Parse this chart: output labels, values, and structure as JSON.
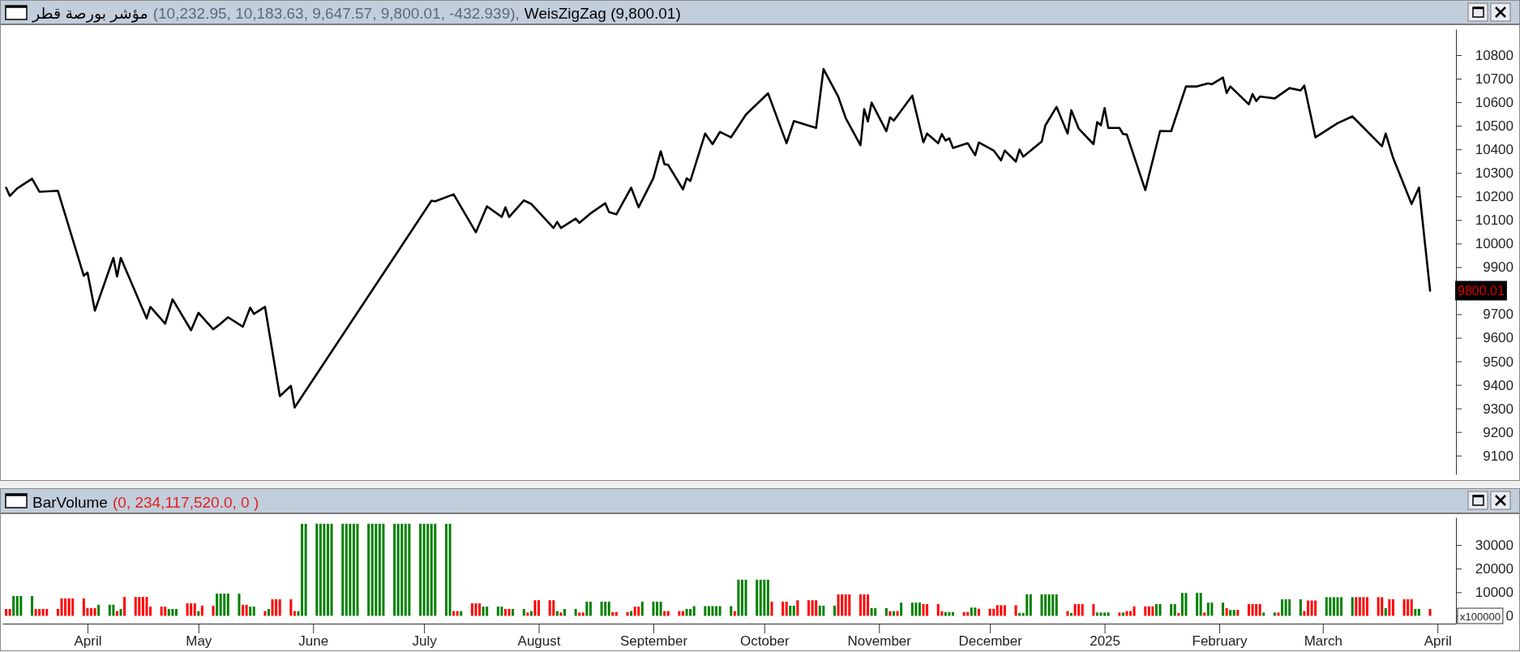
{
  "chart_data": [
    {
      "type": "line",
      "title": "مؤشر بورصة قطر",
      "annotations": [
        "(10,232.95, 10,183.63, 9,647.57, 9,800.01, -432.939),",
        {
          "text": "9800.01",
          "x": "2025-03-30",
          "y": 9800.01
        }
      ],
      "xlim": [
        "2024-03-09",
        "2025-04-06"
      ],
      "ylim": [
        9020,
        10910
      ],
      "yticks": [
        9100,
        9200,
        9300,
        9400,
        9500,
        9600,
        9700,
        9900,
        10000,
        10100,
        10200,
        10300,
        10400,
        10500,
        10600,
        10700,
        10800
      ],
      "tick_labels": "y",
      "legend": "top left",
      "x": [
        "2024-03-10",
        "2024-03-11",
        "2024-03-13",
        "2024-03-17",
        "2024-03-19",
        "2024-03-24",
        "2024-03-31",
        "2024-04-01",
        "2024-04-03",
        "2024-04-08",
        "2024-04-09",
        "2024-04-10",
        "2024-04-17",
        "2024-04-18",
        "2024-04-22",
        "2024-04-24",
        "2024-04-29",
        "2024-05-01",
        "2024-05-05",
        "2024-05-07",
        "2024-05-09",
        "2024-05-13",
        "2024-05-15",
        "2024-05-16",
        "2024-05-19",
        "2024-05-23",
        "2024-05-26",
        "2024-05-27",
        "2024-07-03",
        "2024-07-04",
        "2024-07-09",
        "2024-07-15",
        "2024-07-18",
        "2024-07-22",
        "2024-07-23",
        "2024-07-24",
        "2024-07-28",
        "2024-07-30",
        "2024-08-05",
        "2024-08-06",
        "2024-08-07",
        "2024-08-11",
        "2024-08-12",
        "2024-08-15",
        "2024-08-19",
        "2024-08-20",
        "2024-08-22",
        "2024-08-26",
        "2024-08-28",
        "2024-09-01",
        "2024-09-03",
        "2024-09-04",
        "2024-09-05",
        "2024-09-09",
        "2024-09-10",
        "2024-09-11",
        "2024-09-15",
        "2024-09-17",
        "2024-09-19",
        "2024-09-22",
        "2024-09-26",
        "2024-10-02",
        "2024-10-07",
        "2024-10-09",
        "2024-10-15",
        "2024-10-17",
        "2024-10-21",
        "2024-10-23",
        "2024-10-27",
        "2024-10-28",
        "2024-10-29",
        "2024-10-30",
        "2024-11-03",
        "2024-11-04",
        "2024-11-05",
        "2024-11-10",
        "2024-11-13",
        "2024-11-14",
        "2024-11-17",
        "2024-11-18",
        "2024-11-19",
        "2024-11-20",
        "2024-11-21",
        "2024-11-25",
        "2024-11-27",
        "2024-11-28",
        "2024-12-02",
        "2024-12-04",
        "2024-12-05",
        "2024-12-08",
        "2024-12-09",
        "2024-12-10",
        "2024-12-15",
        "2024-12-16",
        "2024-12-19",
        "2024-12-22",
        "2024-12-23",
        "2024-12-25",
        "2024-12-29",
        "2024-12-30",
        "2024-12-31",
        "2025-01-01",
        "2025-01-02",
        "2025-01-05",
        "2025-01-06",
        "2025-01-07",
        "2025-01-12",
        "2025-01-16",
        "2025-01-19",
        "2025-01-23",
        "2025-01-26",
        "2025-01-29",
        "2025-01-30",
        "2025-02-02",
        "2025-02-03",
        "2025-02-04",
        "2025-02-09",
        "2025-02-10",
        "2025-02-11",
        "2025-02-12",
        "2025-02-16",
        "2025-02-20",
        "2025-02-23",
        "2025-02-24",
        "2025-02-27",
        "2025-03-05",
        "2025-03-09",
        "2025-03-17",
        "2025-03-18",
        "2025-03-20",
        "2025-03-25",
        "2025-03-27",
        "2025-03-30"
      ],
      "series": [
        {
          "name": "WeisZigZag (9,800.01)",
          "color": "#000000",
          "values": [
            10237,
            10202,
            10234,
            10275,
            10220,
            10224,
            9863,
            9877,
            9715,
            9939,
            9860,
            9939,
            9682,
            9731,
            9660,
            9763,
            9632,
            9706,
            9636,
            9660,
            9687,
            9647,
            9728,
            9701,
            9731,
            9352,
            9396,
            9304,
            10182,
            10179,
            10209,
            10048,
            10158,
            10113,
            10154,
            10113,
            10183,
            10168,
            10066,
            10092,
            10066,
            10106,
            10088,
            10128,
            10171,
            10134,
            10124,
            10237,
            10154,
            10278,
            10392,
            10337,
            10334,
            10230,
            10277,
            10266,
            10467,
            10422,
            10474,
            10451,
            10547,
            10638,
            10426,
            10520,
            10491,
            10741,
            10623,
            10533,
            10417,
            10571,
            10518,
            10598,
            10477,
            10536,
            10522,
            10628,
            10430,
            10467,
            10426,
            10465,
            10437,
            10447,
            10406,
            10426,
            10375,
            10429,
            10395,
            10353,
            10395,
            10348,
            10399,
            10369,
            10433,
            10502,
            10580,
            10467,
            10566,
            10488,
            10422,
            10516,
            10502,
            10575,
            10491,
            10491,
            10465,
            10463,
            10227,
            10478,
            10477,
            10667,
            10667,
            10680,
            10676,
            10705,
            10639,
            10667,
            10591,
            10635,
            10605,
            10624,
            10616,
            10660,
            10650,
            10671,
            10451,
            10511,
            10540,
            10413,
            10467,
            10364,
            10168,
            10238,
            9800.01
          ]
        }
      ]
    },
    {
      "type": "bar",
      "title": "BarVolume",
      "annotations": [
        "(0, 234,117,520.0, 0 )"
      ],
      "ylabel": "x100000",
      "xlim": [
        "2024-03-09",
        "2025-04-06"
      ],
      "ylim": [
        -3300,
        41700
      ],
      "xticks": [
        {
          "value": "2024-04-01",
          "label": "April"
        },
        {
          "value": "2024-05-01",
          "label": "May"
        },
        {
          "value": "2024-06-01",
          "label": "June"
        },
        {
          "value": "2024-07-01",
          "label": "July"
        },
        {
          "value": "2024-08-01",
          "label": "August"
        },
        {
          "value": "2024-09-01",
          "label": "September"
        },
        {
          "value": "2024-10-01",
          "label": "October"
        },
        {
          "value": "2024-11-01",
          "label": "November"
        },
        {
          "value": "2024-12-01",
          "label": "December"
        },
        {
          "value": "2025-01-01",
          "label": "2025"
        },
        {
          "value": "2025-02-01",
          "label": "February"
        },
        {
          "value": "2025-03-01",
          "label": "March"
        },
        {
          "value": "2025-04-01",
          "label": "April"
        }
      ],
      "yticks": [
        0,
        10000,
        20000,
        30000
      ],
      "x": [
        "2024-03-10",
        "2024-03-11",
        "2024-03-12",
        "2024-03-13",
        "2024-03-14",
        "2024-03-17",
        "2024-03-18",
        "2024-03-19",
        "2024-03-20",
        "2024-03-21",
        "2024-03-24",
        "2024-03-25",
        "2024-03-26",
        "2024-03-27",
        "2024-03-28",
        "2024-03-31",
        "2024-04-01",
        "2024-04-02",
        "2024-04-03",
        "2024-04-04",
        "2024-04-07",
        "2024-04-08",
        "2024-04-09",
        "2024-04-10",
        "2024-04-11",
        "2024-04-14",
        "2024-04-15",
        "2024-04-16",
        "2024-04-17",
        "2024-04-18",
        "2024-04-21",
        "2024-04-22",
        "2024-04-23",
        "2024-04-24",
        "2024-04-25",
        "2024-04-28",
        "2024-04-29",
        "2024-04-30",
        "2024-05-01",
        "2024-05-02",
        "2024-05-05",
        "2024-05-06",
        "2024-05-07",
        "2024-05-08",
        "2024-05-09",
        "2024-05-12",
        "2024-05-13",
        "2024-05-14",
        "2024-05-15",
        "2024-05-16",
        "2024-05-19",
        "2024-05-20",
        "2024-05-21",
        "2024-05-22",
        "2024-05-23",
        "2024-05-26",
        "2024-05-27",
        "2024-05-28",
        "2024-05-29",
        "2024-05-30",
        "2024-06-02",
        "2024-06-03",
        "2024-06-04",
        "2024-06-05",
        "2024-06-06",
        "2024-06-09",
        "2024-06-10",
        "2024-06-11",
        "2024-06-12",
        "2024-06-13",
        "2024-06-16",
        "2024-06-17",
        "2024-06-18",
        "2024-06-19",
        "2024-06-20",
        "2024-06-23",
        "2024-06-24",
        "2024-06-25",
        "2024-06-26",
        "2024-06-27",
        "2024-06-30",
        "2024-07-01",
        "2024-07-02",
        "2024-07-03",
        "2024-07-04",
        "2024-07-07",
        "2024-07-08",
        "2024-07-09",
        "2024-07-10",
        "2024-07-11",
        "2024-07-14",
        "2024-07-15",
        "2024-07-16",
        "2024-07-17",
        "2024-07-18",
        "2024-07-21",
        "2024-07-22",
        "2024-07-23",
        "2024-07-24",
        "2024-07-25",
        "2024-07-28",
        "2024-07-29",
        "2024-07-30",
        "2024-07-31",
        "2024-08-01",
        "2024-08-04",
        "2024-08-05",
        "2024-08-06",
        "2024-08-07",
        "2024-08-08",
        "2024-08-11",
        "2024-08-12",
        "2024-08-13",
        "2024-08-14",
        "2024-08-15",
        "2024-08-18",
        "2024-08-19",
        "2024-08-20",
        "2024-08-21",
        "2024-08-22",
        "2024-08-25",
        "2024-08-26",
        "2024-08-27",
        "2024-08-28",
        "2024-08-29",
        "2024-09-01",
        "2024-09-02",
        "2024-09-03",
        "2024-09-04",
        "2024-09-05",
        "2024-09-08",
        "2024-09-09",
        "2024-09-10",
        "2024-09-11",
        "2024-09-12",
        "2024-09-15",
        "2024-09-16",
        "2024-09-17",
        "2024-09-18",
        "2024-09-19",
        "2024-09-22",
        "2024-09-23",
        "2024-09-24",
        "2024-09-25",
        "2024-09-26",
        "2024-09-29",
        "2024-09-30",
        "2024-10-01",
        "2024-10-02",
        "2024-10-03",
        "2024-10-06",
        "2024-10-07",
        "2024-10-08",
        "2024-10-09",
        "2024-10-10",
        "2024-10-13",
        "2024-10-14",
        "2024-10-15",
        "2024-10-16",
        "2024-10-17",
        "2024-10-20",
        "2024-10-21",
        "2024-10-22",
        "2024-10-23",
        "2024-10-24",
        "2024-10-27",
        "2024-10-28",
        "2024-10-29",
        "2024-10-30",
        "2024-10-31",
        "2024-11-03",
        "2024-11-04",
        "2024-11-05",
        "2024-11-06",
        "2024-11-07",
        "2024-11-10",
        "2024-11-11",
        "2024-11-12",
        "2024-11-13",
        "2024-11-14",
        "2024-11-17",
        "2024-11-18",
        "2024-11-19",
        "2024-11-20",
        "2024-11-21",
        "2024-11-24",
        "2024-11-25",
        "2024-11-26",
        "2024-11-27",
        "2024-11-28",
        "2024-12-01",
        "2024-12-02",
        "2024-12-03",
        "2024-12-04",
        "2024-12-05",
        "2024-12-08",
        "2024-12-09",
        "2024-12-10",
        "2024-12-11",
        "2024-12-12",
        "2024-12-15",
        "2024-12-16",
        "2024-12-17",
        "2024-12-18",
        "2024-12-19",
        "2024-12-22",
        "2024-12-23",
        "2024-12-24",
        "2024-12-25",
        "2024-12-26",
        "2024-12-29",
        "2024-12-30",
        "2024-12-31",
        "2025-01-01",
        "2025-01-02",
        "2025-01-05",
        "2025-01-06",
        "2025-01-07",
        "2025-01-08",
        "2025-01-09",
        "2025-01-12",
        "2025-01-13",
        "2025-01-14",
        "2025-01-15",
        "2025-01-16",
        "2025-01-19",
        "2025-01-20",
        "2025-01-21",
        "2025-01-22",
        "2025-01-23",
        "2025-01-26",
        "2025-01-27",
        "2025-01-28",
        "2025-01-29",
        "2025-01-30",
        "2025-02-02",
        "2025-02-03",
        "2025-02-04",
        "2025-02-05",
        "2025-02-06",
        "2025-02-09",
        "2025-02-10",
        "2025-02-11",
        "2025-02-12",
        "2025-02-13",
        "2025-02-16",
        "2025-02-17",
        "2025-02-18",
        "2025-02-19",
        "2025-02-20",
        "2025-02-23",
        "2025-02-24",
        "2025-02-25",
        "2025-02-26",
        "2025-02-27",
        "2025-03-02",
        "2025-03-03",
        "2025-03-04",
        "2025-03-05",
        "2025-03-06",
        "2025-03-09",
        "2025-03-10",
        "2025-03-11",
        "2025-03-12",
        "2025-03-13",
        "2025-03-16",
        "2025-03-17",
        "2025-03-18",
        "2025-03-19",
        "2025-03-20",
        "2025-03-23",
        "2025-03-24",
        "2025-03-25",
        "2025-03-26",
        "2025-03-27",
        "2025-03-30"
      ],
      "values": [
        2900,
        2900,
        8400,
        8400,
        8400,
        8400,
        2900,
        2900,
        2900,
        2900,
        2900,
        7400,
        7400,
        7400,
        7400,
        7400,
        3300,
        3300,
        3300,
        4700,
        4700,
        4700,
        2000,
        2900,
        8000,
        8000,
        8000,
        8000,
        8000,
        3900,
        3900,
        3900,
        2900,
        2900,
        2900,
        5300,
        5300,
        5300,
        2000,
        4300,
        4300,
        9400,
        9400,
        9400,
        9400,
        9400,
        4700,
        4700,
        3900,
        3900,
        2000,
        2900,
        7000,
        7000,
        7000,
        7000,
        2000,
        2000,
        39000,
        39000,
        39000,
        39000,
        39000,
        39000,
        39000,
        39000,
        39000,
        39000,
        39000,
        39000,
        39000,
        39000,
        39000,
        39000,
        39000,
        39000,
        39000,
        39000,
        39000,
        39000,
        39000,
        39000,
        39000,
        39000,
        39000,
        39000,
        39000,
        2000,
        2000,
        2000,
        5300,
        5300,
        5300,
        3900,
        3900,
        3900,
        3900,
        2900,
        2900,
        2900,
        2900,
        1400,
        2000,
        6600,
        6600,
        6600,
        6600,
        2000,
        1400,
        2900,
        2900,
        1400,
        1400,
        6000,
        6000,
        6000,
        6000,
        6000,
        1600,
        1600,
        1600,
        2000,
        3900,
        3900,
        6000,
        6000,
        6000,
        6000,
        2000,
        2000,
        2000,
        2000,
        2900,
        2900,
        4100,
        4100,
        4100,
        4100,
        4100,
        4100,
        4100,
        2000,
        15300,
        15300,
        15300,
        15300,
        15300,
        15300,
        15300,
        6000,
        6000,
        6000,
        4300,
        4300,
        6600,
        6600,
        6600,
        6600,
        4300,
        4300,
        4300,
        9100,
        9100,
        9100,
        9100,
        9100,
        9100,
        9100,
        3300,
        3300,
        3300,
        2000,
        2000,
        2000,
        5600,
        5600,
        5600,
        5600,
        5000,
        5000,
        5000,
        2000,
        1600,
        1600,
        1600,
        1600,
        1600,
        3500,
        3500,
        3000,
        3000,
        3000,
        4500,
        4500,
        4500,
        4500,
        1200,
        1200,
        9100,
        9100,
        9100,
        9100,
        9100,
        9100,
        9100,
        2000,
        1200,
        5000,
        5000,
        5000,
        5000,
        1400,
        1400,
        1400,
        1400,
        1400,
        1400,
        2000,
        2000,
        4000,
        4000,
        4000,
        4000,
        5000,
        5000,
        5000,
        5000,
        1200,
        9700,
        9700,
        9700,
        9700,
        1400,
        5600,
        5600,
        5600,
        3300,
        2500,
        2500,
        2500,
        5000,
        5000,
        5000,
        5000,
        1400,
        1400,
        1400,
        7000,
        7000,
        7000,
        7000,
        2000,
        6500,
        6500,
        6500,
        7900,
        7900,
        7900,
        7900,
        7900,
        7900,
        7900,
        7900,
        7900,
        7900,
        7900,
        7900,
        3300,
        7000,
        7000,
        7000,
        7000,
        7000,
        2900,
        2900,
        2900
      ],
      "colors": [
        "#ff0000",
        "#ff0000",
        "#008000",
        "#008000",
        "#008000",
        "#008000",
        "#ff0000",
        "#ff0000",
        "#ff0000",
        "#ff0000",
        "#ff0000",
        "#ff0000",
        "#ff0000",
        "#ff0000",
        "#ff0000",
        "#ff0000",
        "#ff0000",
        "#ff0000",
        "#ff0000",
        "#008000",
        "#008000",
        "#008000",
        "#ff0000",
        "#008000",
        "#ff0000",
        "#ff0000",
        "#ff0000",
        "#ff0000",
        "#ff0000",
        "#ff0000",
        "#ff0000",
        "#ff0000",
        "#008000",
        "#008000",
        "#008000",
        "#ff0000",
        "#ff0000",
        "#ff0000",
        "#008000",
        "#ff0000",
        "#ff0000",
        "#008000",
        "#008000",
        "#008000",
        "#008000",
        "#008000",
        "#ff0000",
        "#ff0000",
        "#008000",
        "#008000",
        "#ff0000",
        "#008000",
        "#ff0000",
        "#ff0000",
        "#ff0000",
        "#ff0000",
        "#ff0000",
        "#008000",
        "#008000",
        "#008000",
        "#008000",
        "#008000",
        "#008000",
        "#008000",
        "#008000",
        "#008000",
        "#008000",
        "#008000",
        "#008000",
        "#008000",
        "#008000",
        "#008000",
        "#008000",
        "#008000",
        "#008000",
        "#008000",
        "#008000",
        "#008000",
        "#008000",
        "#008000",
        "#008000",
        "#008000",
        "#008000",
        "#008000",
        "#008000",
        "#008000",
        "#008000",
        "#ff0000",
        "#ff0000",
        "#008000",
        "#ff0000",
        "#ff0000",
        "#ff0000",
        "#008000",
        "#008000",
        "#008000",
        "#008000",
        "#ff0000",
        "#ff0000",
        "#008000",
        "#008000",
        "#ff0000",
        "#008000",
        "#ff0000",
        "#ff0000",
        "#ff0000",
        "#ff0000",
        "#008000",
        "#ff0000",
        "#008000",
        "#008000",
        "#ff0000",
        "#ff0000",
        "#008000",
        "#008000",
        "#008000",
        "#008000",
        "#008000",
        "#ff0000",
        "#ff0000",
        "#ff0000",
        "#008000",
        "#ff0000",
        "#ff0000",
        "#008000",
        "#008000",
        "#008000",
        "#008000",
        "#ff0000",
        "#ff0000",
        "#ff0000",
        "#ff0000",
        "#008000",
        "#008000",
        "#008000",
        "#008000",
        "#008000",
        "#008000",
        "#008000",
        "#008000",
        "#008000",
        "#ff0000",
        "#008000",
        "#008000",
        "#008000",
        "#008000",
        "#008000",
        "#008000",
        "#008000",
        "#ff0000",
        "#ff0000",
        "#ff0000",
        "#008000",
        "#008000",
        "#ff0000",
        "#ff0000",
        "#ff0000",
        "#ff0000",
        "#008000",
        "#008000",
        "#008000",
        "#ff0000",
        "#ff0000",
        "#ff0000",
        "#ff0000",
        "#ff0000",
        "#ff0000",
        "#ff0000",
        "#008000",
        "#008000",
        "#008000",
        "#ff0000",
        "#008000",
        "#ff0000",
        "#008000",
        "#008000",
        "#008000",
        "#008000",
        "#ff0000",
        "#ff0000",
        "#ff0000",
        "#ff0000",
        "#008000",
        "#008000",
        "#008000",
        "#ff0000",
        "#ff0000",
        "#008000",
        "#008000",
        "#ff0000",
        "#ff0000",
        "#ff0000",
        "#ff0000",
        "#ff0000",
        "#ff0000",
        "#ff0000",
        "#008000",
        "#008000",
        "#008000",
        "#008000",
        "#008000",
        "#008000",
        "#008000",
        "#008000",
        "#008000",
        "#ff0000",
        "#008000",
        "#ff0000",
        "#ff0000",
        "#ff0000",
        "#ff0000",
        "#008000",
        "#008000",
        "#008000",
        "#008000",
        "#ff0000",
        "#008000",
        "#ff0000",
        "#ff0000",
        "#ff0000",
        "#ff0000",
        "#ff0000",
        "#ff0000",
        "#008000",
        "#008000",
        "#008000",
        "#008000",
        "#ff0000",
        "#008000",
        "#008000",
        "#008000",
        "#008000",
        "#ff0000",
        "#008000",
        "#008000",
        "#008000",
        "#ff0000",
        "#008000",
        "#008000",
        "#ff0000",
        "#ff0000",
        "#ff0000",
        "#ff0000",
        "#ff0000",
        "#008000",
        "#008000",
        "#ff0000",
        "#008000",
        "#008000",
        "#008000",
        "#008000",
        "#ff0000",
        "#ff0000",
        "#ff0000",
        "#ff0000",
        "#008000",
        "#008000",
        "#008000",
        "#008000",
        "#008000",
        "#008000",
        "#ff0000",
        "#ff0000",
        "#ff0000",
        "#ff0000",
        "#ff0000",
        "#ff0000",
        "#008000",
        "#ff0000",
        "#ff0000",
        "#ff0000",
        "#ff0000",
        "#ff0000",
        "#008000",
        "#008000",
        "#ff0000"
      ]
    }
  ]
}
